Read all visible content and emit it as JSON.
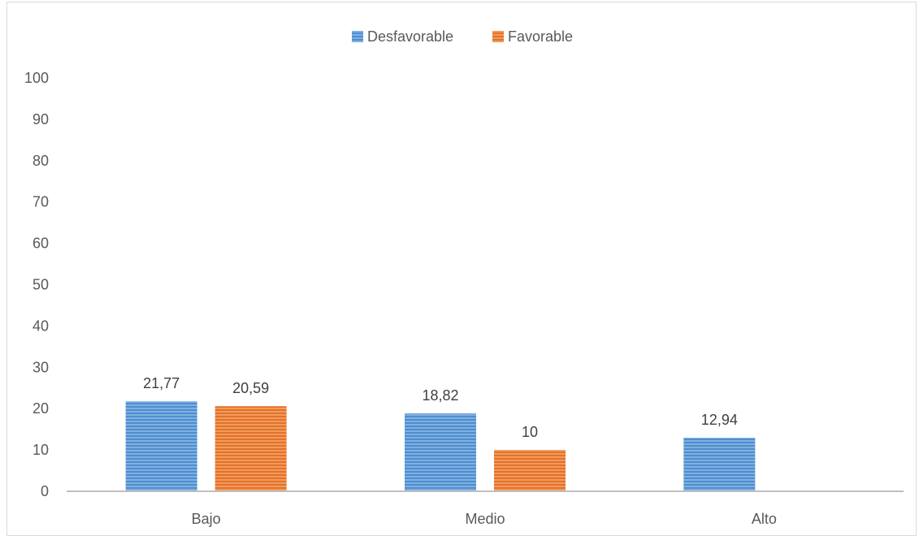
{
  "chart_data": {
    "type": "bar",
    "categories": [
      "Bajo",
      "Medio",
      "Alto"
    ],
    "series": [
      {
        "name": "Desfavorable",
        "values": [
          21.77,
          18.82,
          12.94
        ],
        "labels": [
          "21,77",
          "18,82",
          "12,94"
        ],
        "color": "#5b9bd5"
      },
      {
        "name": "Favorable",
        "values": [
          20.59,
          10,
          null
        ],
        "labels": [
          "20,59",
          "10",
          ""
        ],
        "color": "#ed7d31"
      }
    ],
    "ylim": [
      0,
      100
    ],
    "yticks": [
      0,
      10,
      20,
      30,
      40,
      50,
      60,
      70,
      80,
      90,
      100
    ],
    "grid": false,
    "legend_position": "top-center",
    "bar_pattern": "horizontal-stripes"
  }
}
